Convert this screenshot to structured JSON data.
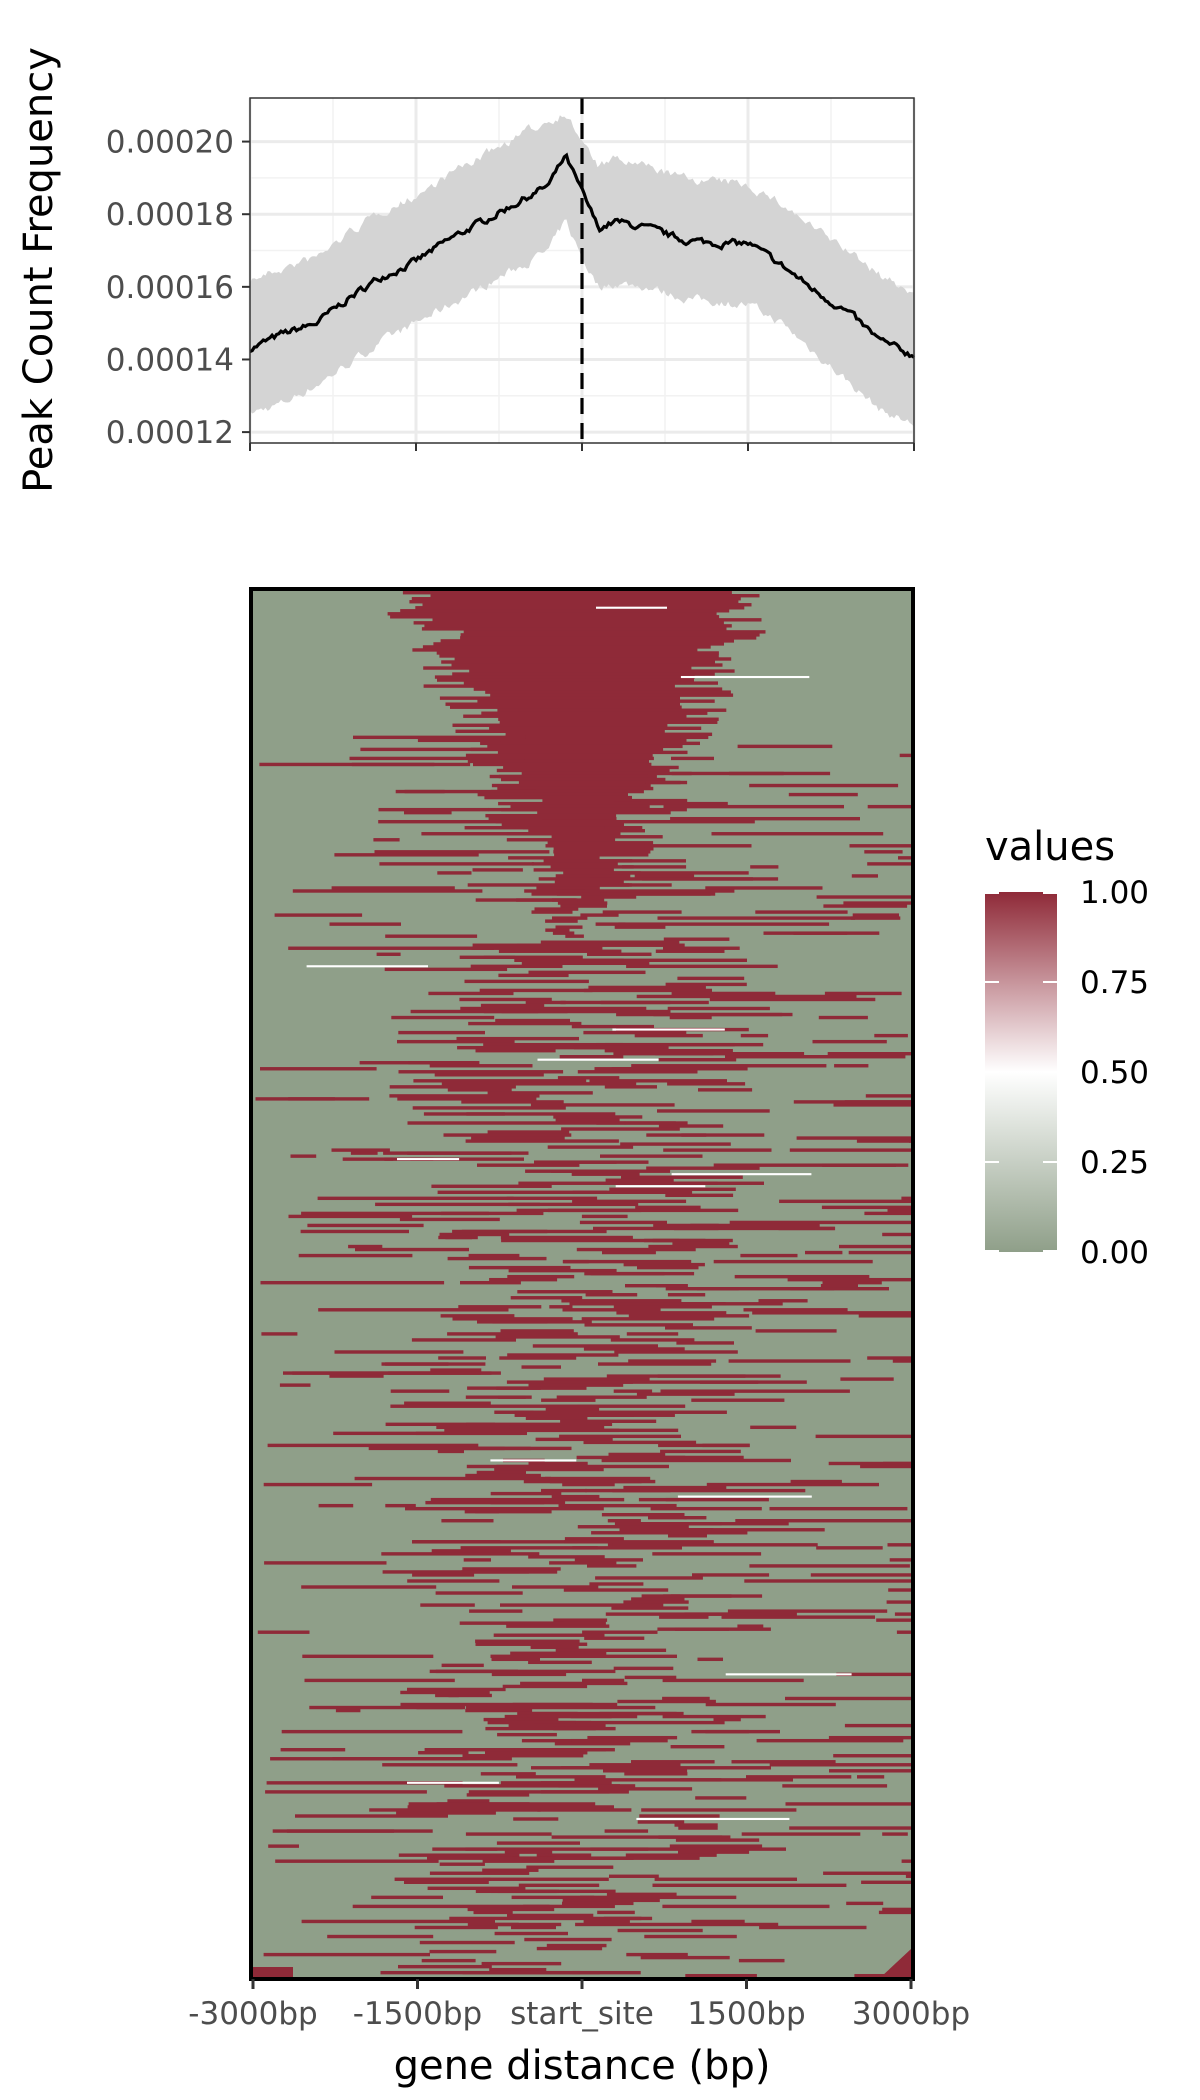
{
  "chart_data": [
    {
      "type": "line",
      "panel": "profile",
      "xlabel": "",
      "ylabel": "Peak Count Frequency",
      "xlim": [
        -3000,
        3000
      ],
      "ylim": [
        0.000117,
        0.000212
      ],
      "y_ticks": [
        "0.00020",
        "0.00018",
        "0.00016",
        "0.00014",
        "0.00012"
      ],
      "y_tick_values": [
        0.0002,
        0.00018,
        0.00016,
        0.00014,
        0.00012
      ],
      "x_tick_values": [
        -3000,
        -1500,
        0,
        1500,
        3000
      ],
      "grid": true,
      "vline_x": 0,
      "vline_style": "dashed",
      "series": [
        {
          "x": [
            -3000,
            -2700,
            -2400,
            -2100,
            -1800,
            -1500,
            -1200,
            -900,
            -600,
            -300,
            -150,
            0,
            150,
            300,
            600,
            900,
            1200,
            1500,
            1800,
            2100,
            2400,
            2700,
            3000
          ],
          "values": [
            0.000143,
            0.000147,
            0.00015,
            0.000157,
            0.000163,
            0.000167,
            0.000173,
            0.000178,
            0.000183,
            0.000188,
            0.000196,
            0.000186,
            0.000176,
            0.000178,
            0.000176,
            0.000173,
            0.000172,
            0.000172,
            0.000166,
            0.000159,
            0.000153,
            0.000145,
            0.000141
          ],
          "lower": [
            0.000125,
            0.000128,
            0.000133,
            0.000139,
            0.000145,
            0.00015,
            0.000155,
            0.00016,
            0.000165,
            0.00017,
            0.000178,
            0.000168,
            0.00016,
            0.000161,
            0.00016,
            0.000157,
            0.000156,
            0.000155,
            0.00015,
            0.000142,
            0.000134,
            0.000126,
            0.000122
          ],
          "upper": [
            0.000162,
            0.000165,
            0.000168,
            0.000175,
            0.000181,
            0.000185,
            0.000191,
            0.000196,
            0.000201,
            0.000206,
            0.000208,
            0.0002,
            0.000193,
            0.000195,
            0.000193,
            0.00019,
            0.000189,
            0.000188,
            0.000183,
            0.000176,
            0.00017,
            0.000163,
            0.000158
          ]
        }
      ],
      "colors": {
        "line": "#000000",
        "ribbon": "#d4d4d4",
        "grid": "#ebebeb"
      }
    },
    {
      "type": "heatmap",
      "panel": "tag-heatmap",
      "xlabel": "gene distance (bp)",
      "x_tick_labels": [
        "-3000bp",
        "-1500bp",
        "start_site",
        "1500bp",
        "3000bp"
      ],
      "x_tick_values": [
        -3000,
        -1500,
        0,
        1500,
        3000
      ],
      "xlim": [
        -3000,
        3000
      ],
      "legend": {
        "title": "values",
        "position": "right",
        "tick_labels": [
          "1.00",
          "0.75",
          "0.50",
          "0.25",
          "0.00"
        ],
        "tick_values": [
          1.0,
          0.75,
          0.5,
          0.25,
          0.0
        ]
      },
      "colors": {
        "high": "#8f2a38",
        "mid": "#ffffff",
        "low": "#8f9f89"
      },
      "value_range": [
        0,
        1
      ]
    }
  ]
}
